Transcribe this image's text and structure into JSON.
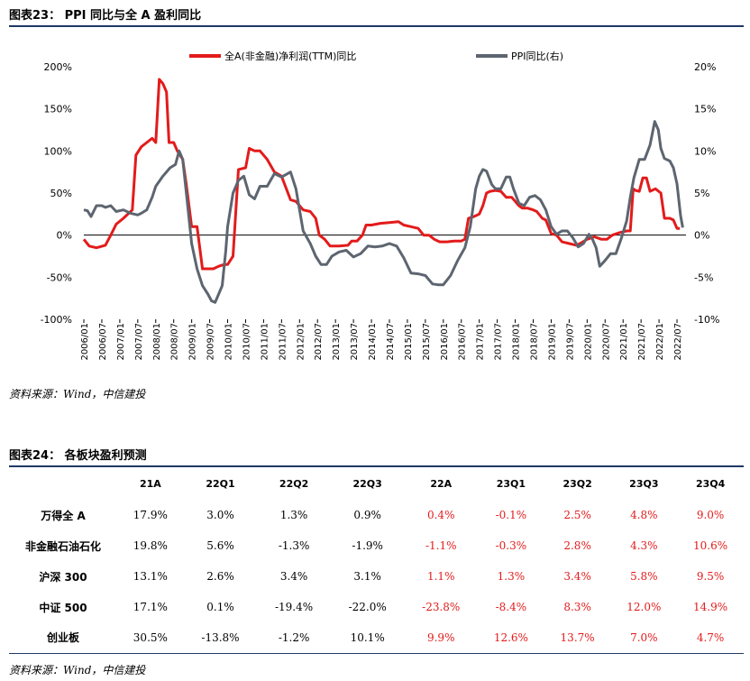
{
  "figure1": {
    "title": "图表23： PPI 同比与全 A 盈利同比",
    "source": "资料来源：Wind，中信建投"
  },
  "figure2": {
    "title": "图表24： 各板块盈利预测",
    "source": "资料来源：Wind，中信建投"
  },
  "colors": {
    "profit": "#e31b1b",
    "ppi": "#5d6570",
    "rule": "#1f3864",
    "forecast": "#e31b1b"
  },
  "chart_data": {
    "type": "line",
    "title": "PPI 同比与全 A 盈利同比",
    "x_labels": [
      "2006/01",
      "2006/07",
      "2007/01",
      "2007/07",
      "2008/01",
      "2008/07",
      "2009/01",
      "2009/07",
      "2010/01",
      "2010/07",
      "2011/01",
      "2011/07",
      "2012/01",
      "2012/07",
      "2013/01",
      "2013/07",
      "2014/01",
      "2014/07",
      "2015/01",
      "2015/07",
      "2016/01",
      "2016/07",
      "2017/01",
      "2017/07",
      "2018/01",
      "2018/07",
      "2019/01",
      "2019/07",
      "2020/01",
      "2020/07",
      "2021/01",
      "2021/07",
      "2022/01",
      "2022/07"
    ],
    "y_left": {
      "min": -100,
      "max": 200,
      "ticks": [
        "-100%",
        "-50%",
        "0%",
        "50%",
        "100%",
        "150%",
        "200%"
      ]
    },
    "y_right": {
      "min": -10,
      "max": 20,
      "ticks": [
        "-10%",
        "-5%",
        "0%",
        "5%",
        "10%",
        "15%",
        "20%"
      ]
    },
    "legend": "top",
    "series": [
      {
        "name": "全A(非金融)净利润(TTM)同比",
        "axis": "left",
        "points": [
          [
            2006.0,
            -5
          ],
          [
            2006.15,
            -13
          ],
          [
            2006.35,
            -15
          ],
          [
            2006.6,
            -12
          ],
          [
            2006.75,
            0
          ],
          [
            2006.9,
            13
          ],
          [
            2007.1,
            20
          ],
          [
            2007.35,
            30
          ],
          [
            2007.45,
            95
          ],
          [
            2007.6,
            105
          ],
          [
            2007.75,
            110
          ],
          [
            2007.9,
            115
          ],
          [
            2008.0,
            110
          ],
          [
            2008.1,
            185
          ],
          [
            2008.2,
            180
          ],
          [
            2008.3,
            170
          ],
          [
            2008.37,
            110
          ],
          [
            2008.5,
            110
          ],
          [
            2008.6,
            100
          ],
          [
            2008.75,
            90
          ],
          [
            2008.85,
            60
          ],
          [
            2009.0,
            10
          ],
          [
            2009.15,
            10
          ],
          [
            2009.3,
            -40
          ],
          [
            2009.5,
            -40
          ],
          [
            2009.6,
            -40
          ],
          [
            2009.75,
            -37
          ],
          [
            2009.9,
            -35
          ],
          [
            2010.0,
            -35
          ],
          [
            2010.15,
            -25
          ],
          [
            2010.3,
            78
          ],
          [
            2010.5,
            80
          ],
          [
            2010.6,
            103
          ],
          [
            2010.75,
            100
          ],
          [
            2010.9,
            100
          ],
          [
            2011.1,
            90
          ],
          [
            2011.3,
            75
          ],
          [
            2011.5,
            70
          ],
          [
            2011.75,
            42
          ],
          [
            2011.9,
            40
          ],
          [
            2012.1,
            30
          ],
          [
            2012.3,
            28
          ],
          [
            2012.45,
            20
          ],
          [
            2012.55,
            0
          ],
          [
            2012.7,
            -5
          ],
          [
            2012.85,
            -13
          ],
          [
            2013.1,
            -13
          ],
          [
            2013.35,
            -12
          ],
          [
            2013.45,
            -7
          ],
          [
            2013.6,
            -7
          ],
          [
            2013.75,
            0
          ],
          [
            2013.85,
            12
          ],
          [
            2014.0,
            12
          ],
          [
            2014.25,
            14
          ],
          [
            2014.5,
            15
          ],
          [
            2014.75,
            16
          ],
          [
            2014.9,
            12
          ],
          [
            2015.1,
            10
          ],
          [
            2015.3,
            8
          ],
          [
            2015.45,
            0
          ],
          [
            2015.6,
            0
          ],
          [
            2015.75,
            -5
          ],
          [
            2015.9,
            -8
          ],
          [
            2016.1,
            -8
          ],
          [
            2016.3,
            -7
          ],
          [
            2016.5,
            -7
          ],
          [
            2016.6,
            -5
          ],
          [
            2016.7,
            20
          ],
          [
            2016.85,
            22
          ],
          [
            2017.0,
            25
          ],
          [
            2017.1,
            35
          ],
          [
            2017.2,
            50
          ],
          [
            2017.3,
            52
          ],
          [
            2017.45,
            53
          ],
          [
            2017.6,
            52
          ],
          [
            2017.75,
            45
          ],
          [
            2017.9,
            45
          ],
          [
            2018.1,
            35
          ],
          [
            2018.2,
            32
          ],
          [
            2018.35,
            32
          ],
          [
            2018.5,
            30
          ],
          [
            2018.6,
            28
          ],
          [
            2018.75,
            20
          ],
          [
            2018.85,
            18
          ],
          [
            2019.0,
            2
          ],
          [
            2019.15,
            0
          ],
          [
            2019.3,
            -8
          ],
          [
            2019.5,
            -10
          ],
          [
            2019.7,
            -12
          ],
          [
            2019.8,
            -10
          ],
          [
            2020.0,
            -5
          ],
          [
            2020.2,
            -2
          ],
          [
            2020.4,
            -5
          ],
          [
            2020.55,
            -5
          ],
          [
            2020.7,
            0
          ],
          [
            2020.9,
            3
          ],
          [
            2021.1,
            5
          ],
          [
            2021.2,
            5
          ],
          [
            2021.28,
            55
          ],
          [
            2021.35,
            53
          ],
          [
            2021.45,
            52
          ],
          [
            2021.55,
            68
          ],
          [
            2021.65,
            68
          ],
          [
            2021.75,
            52
          ],
          [
            2021.9,
            55
          ],
          [
            2022.05,
            50
          ],
          [
            2022.15,
            20
          ],
          [
            2022.3,
            20
          ],
          [
            2022.4,
            18
          ],
          [
            2022.5,
            8
          ],
          [
            2022.58,
            8
          ]
        ]
      },
      {
        "name": "PPI同比(右)",
        "axis": "right",
        "points": [
          [
            2006.0,
            3.0
          ],
          [
            2006.1,
            2.9
          ],
          [
            2006.2,
            2.2
          ],
          [
            2006.35,
            3.5
          ],
          [
            2006.5,
            3.5
          ],
          [
            2006.6,
            3.3
          ],
          [
            2006.75,
            3.5
          ],
          [
            2006.9,
            2.8
          ],
          [
            2007.1,
            3.0
          ],
          [
            2007.3,
            2.6
          ],
          [
            2007.5,
            2.4
          ],
          [
            2007.6,
            2.6
          ],
          [
            2007.75,
            3.0
          ],
          [
            2007.9,
            4.5
          ],
          [
            2008.0,
            5.8
          ],
          [
            2008.2,
            7.0
          ],
          [
            2008.4,
            8.0
          ],
          [
            2008.55,
            8.4
          ],
          [
            2008.65,
            10.0
          ],
          [
            2008.75,
            9.0
          ],
          [
            2008.9,
            3.0
          ],
          [
            2009.0,
            -1.0
          ],
          [
            2009.15,
            -4.0
          ],
          [
            2009.3,
            -6.0
          ],
          [
            2009.45,
            -7.0
          ],
          [
            2009.55,
            -7.8
          ],
          [
            2009.65,
            -8.0
          ],
          [
            2009.75,
            -7.0
          ],
          [
            2009.85,
            -6.0
          ],
          [
            2009.95,
            -1.8
          ],
          [
            2010.0,
            1.0
          ],
          [
            2010.15,
            5.0
          ],
          [
            2010.3,
            6.5
          ],
          [
            2010.45,
            7.0
          ],
          [
            2010.6,
            4.8
          ],
          [
            2010.75,
            4.3
          ],
          [
            2010.9,
            5.8
          ],
          [
            2011.1,
            5.8
          ],
          [
            2011.3,
            7.3
          ],
          [
            2011.5,
            6.9
          ],
          [
            2011.75,
            7.5
          ],
          [
            2011.9,
            5.5
          ],
          [
            2012.1,
            0.5
          ],
          [
            2012.3,
            -1.0
          ],
          [
            2012.45,
            -2.5
          ],
          [
            2012.6,
            -3.5
          ],
          [
            2012.75,
            -3.5
          ],
          [
            2012.9,
            -2.5
          ],
          [
            2013.1,
            -2.0
          ],
          [
            2013.3,
            -1.8
          ],
          [
            2013.5,
            -2.6
          ],
          [
            2013.7,
            -2.2
          ],
          [
            2013.9,
            -1.3
          ],
          [
            2014.1,
            -1.4
          ],
          [
            2014.3,
            -1.3
          ],
          [
            2014.5,
            -1.0
          ],
          [
            2014.7,
            -1.3
          ],
          [
            2014.9,
            -2.7
          ],
          [
            2015.1,
            -4.5
          ],
          [
            2015.3,
            -4.6
          ],
          [
            2015.5,
            -4.8
          ],
          [
            2015.7,
            -5.8
          ],
          [
            2015.85,
            -5.9
          ],
          [
            2016.0,
            -5.9
          ],
          [
            2016.2,
            -4.8
          ],
          [
            2016.4,
            -3.0
          ],
          [
            2016.6,
            -1.5
          ],
          [
            2016.75,
            1.0
          ],
          [
            2016.9,
            5.5
          ],
          [
            2017.0,
            7.0
          ],
          [
            2017.1,
            7.8
          ],
          [
            2017.2,
            7.6
          ],
          [
            2017.35,
            6.0
          ],
          [
            2017.45,
            5.5
          ],
          [
            2017.6,
            5.5
          ],
          [
            2017.75,
            6.9
          ],
          [
            2017.85,
            6.9
          ],
          [
            2017.95,
            5.5
          ],
          [
            2018.1,
            3.8
          ],
          [
            2018.25,
            3.5
          ],
          [
            2018.4,
            4.5
          ],
          [
            2018.55,
            4.7
          ],
          [
            2018.7,
            4.2
          ],
          [
            2018.85,
            3.0
          ],
          [
            2019.0,
            1.0
          ],
          [
            2019.15,
            0.1
          ],
          [
            2019.3,
            0.5
          ],
          [
            2019.45,
            0.5
          ],
          [
            2019.6,
            -0.3
          ],
          [
            2019.75,
            -1.4
          ],
          [
            2019.9,
            -1.0
          ],
          [
            2020.05,
            0.1
          ],
          [
            2020.15,
            -0.5
          ],
          [
            2020.25,
            -1.5
          ],
          [
            2020.35,
            -3.7
          ],
          [
            2020.5,
            -3.0
          ],
          [
            2020.65,
            -2.2
          ],
          [
            2020.8,
            -2.2
          ],
          [
            2020.95,
            -0.4
          ],
          [
            2021.1,
            1.7
          ],
          [
            2021.2,
            4.5
          ],
          [
            2021.3,
            6.8
          ],
          [
            2021.45,
            9.0
          ],
          [
            2021.6,
            9.0
          ],
          [
            2021.75,
            10.7
          ],
          [
            2021.88,
            13.5
          ],
          [
            2021.98,
            12.5
          ],
          [
            2022.05,
            10.3
          ],
          [
            2022.15,
            9.1
          ],
          [
            2022.3,
            8.8
          ],
          [
            2022.4,
            8.0
          ],
          [
            2022.5,
            6.1
          ],
          [
            2022.55,
            4.2
          ],
          [
            2022.6,
            2.3
          ],
          [
            2022.66,
            0.9
          ]
        ]
      }
    ]
  },
  "table": {
    "headers": [
      "",
      "21A",
      "22Q1",
      "22Q2",
      "22Q3",
      "22A",
      "23Q1",
      "23Q2",
      "23Q3",
      "23Q4"
    ],
    "rows": [
      {
        "label": "万得全 A",
        "values": [
          "17.9%",
          "3.0%",
          "1.3%",
          "0.9%",
          "0.4%",
          "-0.1%",
          "2.5%",
          "4.8%",
          "9.0%"
        ]
      },
      {
        "label": "非金融石油石化",
        "values": [
          "19.8%",
          "5.6%",
          "-1.3%",
          "-1.9%",
          "-1.1%",
          "-0.3%",
          "2.8%",
          "4.3%",
          "10.6%"
        ]
      },
      {
        "label": "沪深 300",
        "values": [
          "13.1%",
          "2.6%",
          "3.4%",
          "3.1%",
          "1.1%",
          "1.3%",
          "3.4%",
          "5.8%",
          "9.5%"
        ]
      },
      {
        "label": "中证 500",
        "values": [
          "17.1%",
          "0.1%",
          "-19.4%",
          "-22.0%",
          "-23.8%",
          "-8.4%",
          "8.3%",
          "12.0%",
          "14.9%"
        ]
      },
      {
        "label": "创业板",
        "values": [
          "30.5%",
          "-13.8%",
          "-1.2%",
          "10.1%",
          "9.9%",
          "12.6%",
          "13.7%",
          "7.0%",
          "4.7%"
        ]
      }
    ]
  }
}
